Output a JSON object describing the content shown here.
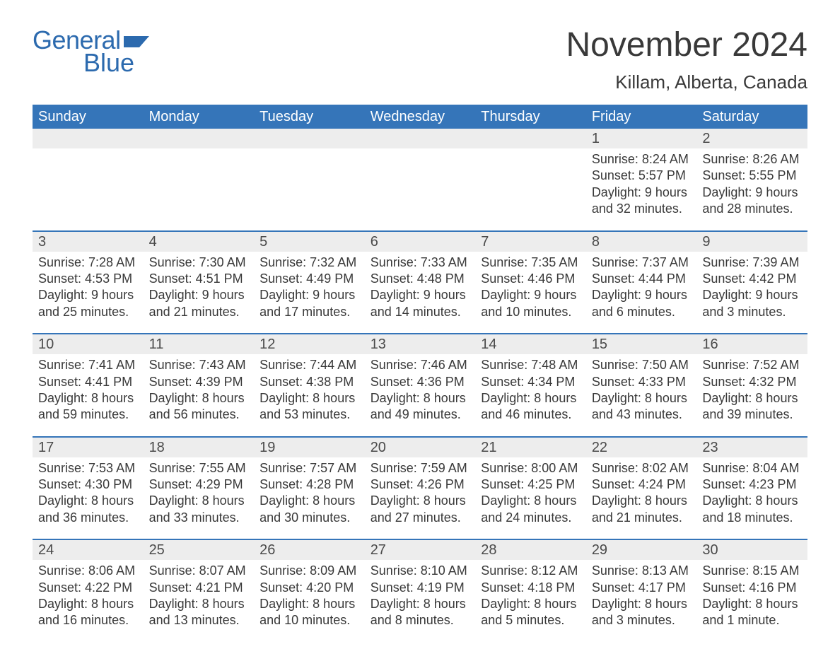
{
  "brand": {
    "word1": "General",
    "word2": "Blue",
    "brand_color": "#2c6aae",
    "flag_color": "#2c6aae"
  },
  "header": {
    "month_title": "November 2024",
    "location": "Killam, Alberta, Canada"
  },
  "calendar": {
    "header_bg": "#3575b9",
    "header_fg": "#ffffff",
    "row_divider_color": "#3575b9",
    "daynum_bg": "#ededed",
    "text_color": "#393939",
    "day_headers": [
      "Sunday",
      "Monday",
      "Tuesday",
      "Wednesday",
      "Thursday",
      "Friday",
      "Saturday"
    ],
    "weeks": [
      [
        {
          "empty": true
        },
        {
          "empty": true
        },
        {
          "empty": true
        },
        {
          "empty": true
        },
        {
          "empty": true
        },
        {
          "day": "1",
          "sunrise": "Sunrise: 8:24 AM",
          "sunset": "Sunset: 5:57 PM",
          "daylight1": "Daylight: 9 hours",
          "daylight2": "and 32 minutes."
        },
        {
          "day": "2",
          "sunrise": "Sunrise: 8:26 AM",
          "sunset": "Sunset: 5:55 PM",
          "daylight1": "Daylight: 9 hours",
          "daylight2": "and 28 minutes."
        }
      ],
      [
        {
          "day": "3",
          "sunrise": "Sunrise: 7:28 AM",
          "sunset": "Sunset: 4:53 PM",
          "daylight1": "Daylight: 9 hours",
          "daylight2": "and 25 minutes."
        },
        {
          "day": "4",
          "sunrise": "Sunrise: 7:30 AM",
          "sunset": "Sunset: 4:51 PM",
          "daylight1": "Daylight: 9 hours",
          "daylight2": "and 21 minutes."
        },
        {
          "day": "5",
          "sunrise": "Sunrise: 7:32 AM",
          "sunset": "Sunset: 4:49 PM",
          "daylight1": "Daylight: 9 hours",
          "daylight2": "and 17 minutes."
        },
        {
          "day": "6",
          "sunrise": "Sunrise: 7:33 AM",
          "sunset": "Sunset: 4:48 PM",
          "daylight1": "Daylight: 9 hours",
          "daylight2": "and 14 minutes."
        },
        {
          "day": "7",
          "sunrise": "Sunrise: 7:35 AM",
          "sunset": "Sunset: 4:46 PM",
          "daylight1": "Daylight: 9 hours",
          "daylight2": "and 10 minutes."
        },
        {
          "day": "8",
          "sunrise": "Sunrise: 7:37 AM",
          "sunset": "Sunset: 4:44 PM",
          "daylight1": "Daylight: 9 hours",
          "daylight2": "and 6 minutes."
        },
        {
          "day": "9",
          "sunrise": "Sunrise: 7:39 AM",
          "sunset": "Sunset: 4:42 PM",
          "daylight1": "Daylight: 9 hours",
          "daylight2": "and 3 minutes."
        }
      ],
      [
        {
          "day": "10",
          "sunrise": "Sunrise: 7:41 AM",
          "sunset": "Sunset: 4:41 PM",
          "daylight1": "Daylight: 8 hours",
          "daylight2": "and 59 minutes."
        },
        {
          "day": "11",
          "sunrise": "Sunrise: 7:43 AM",
          "sunset": "Sunset: 4:39 PM",
          "daylight1": "Daylight: 8 hours",
          "daylight2": "and 56 minutes."
        },
        {
          "day": "12",
          "sunrise": "Sunrise: 7:44 AM",
          "sunset": "Sunset: 4:38 PM",
          "daylight1": "Daylight: 8 hours",
          "daylight2": "and 53 minutes."
        },
        {
          "day": "13",
          "sunrise": "Sunrise: 7:46 AM",
          "sunset": "Sunset: 4:36 PM",
          "daylight1": "Daylight: 8 hours",
          "daylight2": "and 49 minutes."
        },
        {
          "day": "14",
          "sunrise": "Sunrise: 7:48 AM",
          "sunset": "Sunset: 4:34 PM",
          "daylight1": "Daylight: 8 hours",
          "daylight2": "and 46 minutes."
        },
        {
          "day": "15",
          "sunrise": "Sunrise: 7:50 AM",
          "sunset": "Sunset: 4:33 PM",
          "daylight1": "Daylight: 8 hours",
          "daylight2": "and 43 minutes."
        },
        {
          "day": "16",
          "sunrise": "Sunrise: 7:52 AM",
          "sunset": "Sunset: 4:32 PM",
          "daylight1": "Daylight: 8 hours",
          "daylight2": "and 39 minutes."
        }
      ],
      [
        {
          "day": "17",
          "sunrise": "Sunrise: 7:53 AM",
          "sunset": "Sunset: 4:30 PM",
          "daylight1": "Daylight: 8 hours",
          "daylight2": "and 36 minutes."
        },
        {
          "day": "18",
          "sunrise": "Sunrise: 7:55 AM",
          "sunset": "Sunset: 4:29 PM",
          "daylight1": "Daylight: 8 hours",
          "daylight2": "and 33 minutes."
        },
        {
          "day": "19",
          "sunrise": "Sunrise: 7:57 AM",
          "sunset": "Sunset: 4:28 PM",
          "daylight1": "Daylight: 8 hours",
          "daylight2": "and 30 minutes."
        },
        {
          "day": "20",
          "sunrise": "Sunrise: 7:59 AM",
          "sunset": "Sunset: 4:26 PM",
          "daylight1": "Daylight: 8 hours",
          "daylight2": "and 27 minutes."
        },
        {
          "day": "21",
          "sunrise": "Sunrise: 8:00 AM",
          "sunset": "Sunset: 4:25 PM",
          "daylight1": "Daylight: 8 hours",
          "daylight2": "and 24 minutes."
        },
        {
          "day": "22",
          "sunrise": "Sunrise: 8:02 AM",
          "sunset": "Sunset: 4:24 PM",
          "daylight1": "Daylight: 8 hours",
          "daylight2": "and 21 minutes."
        },
        {
          "day": "23",
          "sunrise": "Sunrise: 8:04 AM",
          "sunset": "Sunset: 4:23 PM",
          "daylight1": "Daylight: 8 hours",
          "daylight2": "and 18 minutes."
        }
      ],
      [
        {
          "day": "24",
          "sunrise": "Sunrise: 8:06 AM",
          "sunset": "Sunset: 4:22 PM",
          "daylight1": "Daylight: 8 hours",
          "daylight2": "and 16 minutes."
        },
        {
          "day": "25",
          "sunrise": "Sunrise: 8:07 AM",
          "sunset": "Sunset: 4:21 PM",
          "daylight1": "Daylight: 8 hours",
          "daylight2": "and 13 minutes."
        },
        {
          "day": "26",
          "sunrise": "Sunrise: 8:09 AM",
          "sunset": "Sunset: 4:20 PM",
          "daylight1": "Daylight: 8 hours",
          "daylight2": "and 10 minutes."
        },
        {
          "day": "27",
          "sunrise": "Sunrise: 8:10 AM",
          "sunset": "Sunset: 4:19 PM",
          "daylight1": "Daylight: 8 hours",
          "daylight2": "and 8 minutes."
        },
        {
          "day": "28",
          "sunrise": "Sunrise: 8:12 AM",
          "sunset": "Sunset: 4:18 PM",
          "daylight1": "Daylight: 8 hours",
          "daylight2": "and 5 minutes."
        },
        {
          "day": "29",
          "sunrise": "Sunrise: 8:13 AM",
          "sunset": "Sunset: 4:17 PM",
          "daylight1": "Daylight: 8 hours",
          "daylight2": "and 3 minutes."
        },
        {
          "day": "30",
          "sunrise": "Sunrise: 8:15 AM",
          "sunset": "Sunset: 4:16 PM",
          "daylight1": "Daylight: 8 hours",
          "daylight2": "and 1 minute."
        }
      ]
    ]
  }
}
